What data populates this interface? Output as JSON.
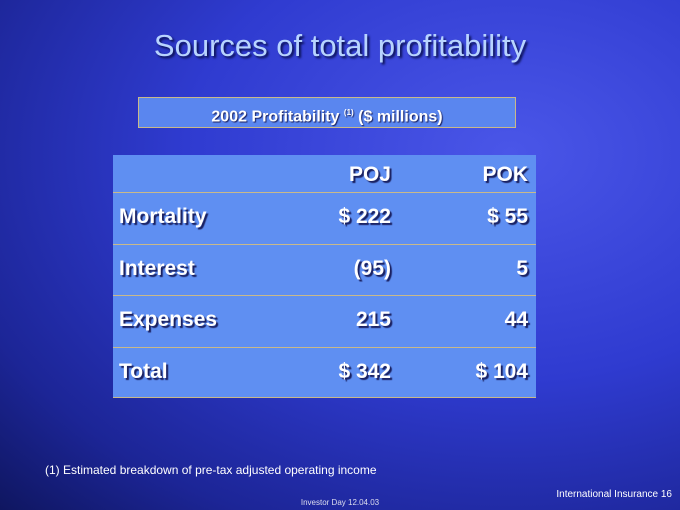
{
  "title": "Sources of total profitability",
  "subtitle": {
    "text": "2002 Profitability",
    "note_ref": "(1)",
    "units": "($ millions)"
  },
  "table": {
    "columns": [
      "POJ",
      "POK"
    ],
    "rows": [
      [
        "Mortality",
        "$ 222",
        "$ 55"
      ],
      [
        "Interest",
        "(95)",
        "5"
      ],
      [
        "Expenses",
        "215",
        "44"
      ],
      [
        "Total",
        "$ 342",
        "$ 104"
      ]
    ]
  },
  "footnote": "(1)  Estimated breakdown of pre-tax adjusted operating income",
  "footer": {
    "event": "Investor Day 12.04.03",
    "section": "International Insurance",
    "page": "16"
  }
}
